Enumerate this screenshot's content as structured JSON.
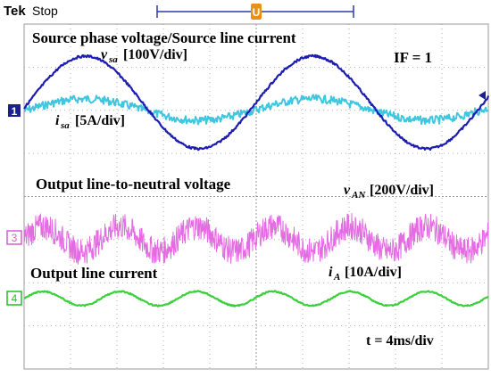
{
  "header": {
    "brand": "Tek",
    "status": "Stop",
    "trigger_marker": "U"
  },
  "labels": {
    "source_title": "Source phase voltage/Source line current",
    "vsa": "v",
    "vsa_sub": "sa",
    "vsa_scale": "[100V/div]",
    "isa": "i",
    "isa_sub": "sa",
    "isa_scale": "[5A/div]",
    "if_label": "IF = 1",
    "output_voltage_title": "Output line-to-neutral voltage",
    "van": "v",
    "van_sub": "AN",
    "van_scale": "[200V/div]",
    "output_current_title": "Output line current",
    "ia": "i",
    "ia_sub": "A",
    "ia_scale": "[10A/div]",
    "timebase": "t = 4ms/div"
  },
  "channels": [
    {
      "id": "1",
      "color": "#1b1f8f"
    },
    {
      "id": "3",
      "color": "#d45fd0"
    },
    {
      "id": "4",
      "color": "#2bb82b"
    }
  ],
  "colors": {
    "ch1_voltage": "#1c1cb0",
    "ch2_current": "#3fc7df",
    "ch3_voltage": "#e46be2",
    "ch4_current": "#3ccf3c",
    "if_text": "#b02020",
    "grid": "#9a9a9a"
  }
}
